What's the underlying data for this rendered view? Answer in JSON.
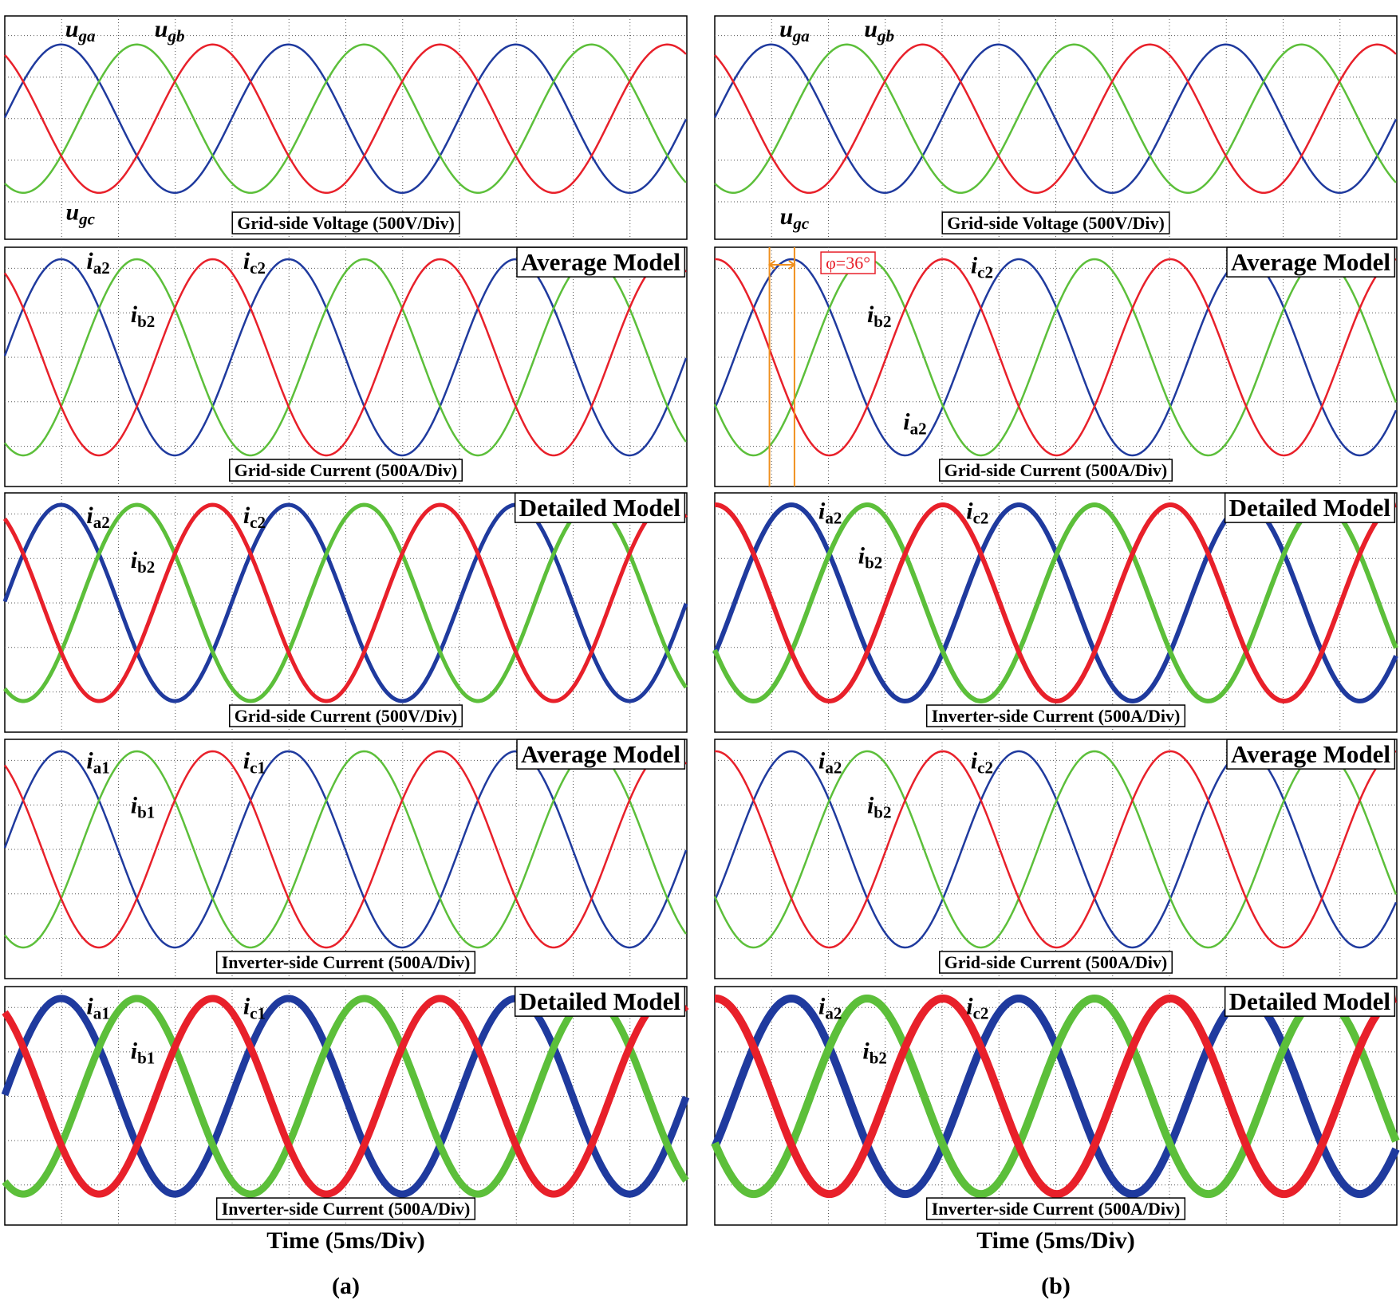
{
  "columns": [
    {
      "caption": "(a)",
      "x_axis_label": "Time (5ms/Div)",
      "panels": [
        {
          "scale_label": "Grid-side Voltage (500V/Div)",
          "signal_labels": [
            {
              "main": "u",
              "sub": "ga"
            },
            {
              "main": "u",
              "sub": "gb"
            },
            {
              "main": "u",
              "sub": "gc"
            }
          ]
        },
        {
          "model": "Average Model",
          "scale_label": "Grid-side Current (500A/Div)",
          "signal_labels": [
            {
              "main": "i",
              "sub": "a2"
            },
            {
              "main": "i",
              "sub": "b2"
            },
            {
              "main": "i",
              "sub": "c2"
            }
          ]
        },
        {
          "model": "Detailed Model",
          "scale_label": "Grid-side Current (500V/Div)",
          "signal_labels": [
            {
              "main": "i",
              "sub": "a2"
            },
            {
              "main": "i",
              "sub": "b2"
            },
            {
              "main": "i",
              "sub": "c2"
            }
          ]
        },
        {
          "model": "Average Model",
          "scale_label": "Inverter-side Current (500A/Div)",
          "signal_labels": [
            {
              "main": "i",
              "sub": "a1"
            },
            {
              "main": "i",
              "sub": "b1"
            },
            {
              "main": "i",
              "sub": "c1"
            }
          ]
        },
        {
          "model": "Detailed Model",
          "scale_label": "Inverter-side Current (500A/Div)",
          "signal_labels": [
            {
              "main": "i",
              "sub": "a1"
            },
            {
              "main": "i",
              "sub": "b1"
            },
            {
              "main": "i",
              "sub": "c1"
            }
          ]
        }
      ]
    },
    {
      "caption": "(b)",
      "x_axis_label": "Time (5ms/Div)",
      "panels": [
        {
          "scale_label": "Grid-side Voltage (500V/Div)",
          "signal_labels": [
            {
              "main": "u",
              "sub": "ga"
            },
            {
              "main": "u",
              "sub": "gb"
            },
            {
              "main": "u",
              "sub": "gc"
            }
          ]
        },
        {
          "model": "Average Model",
          "scale_label": "Grid-side Current (500A/Div)",
          "phase_annotation": "φ=36°",
          "signal_labels": [
            {
              "main": "i",
              "sub": "a2"
            },
            {
              "main": "i",
              "sub": "b2"
            },
            {
              "main": "i",
              "sub": "c2"
            }
          ]
        },
        {
          "model": "Detailed Model",
          "scale_label": "Inverter-side Current (500A/Div)",
          "signal_labels": [
            {
              "main": "i",
              "sub": "a2"
            },
            {
              "main": "i",
              "sub": "b2"
            },
            {
              "main": "i",
              "sub": "c2"
            }
          ]
        },
        {
          "model": "Average Model",
          "scale_label": "Grid-side Current (500A/Div)",
          "signal_labels": [
            {
              "main": "i",
              "sub": "a2"
            },
            {
              "main": "i",
              "sub": "b2"
            },
            {
              "main": "i",
              "sub": "c2"
            }
          ]
        },
        {
          "model": "Detailed Model",
          "scale_label": "Inverter-side Current (500A/Div)",
          "signal_labels": [
            {
              "main": "i",
              "sub": "a2"
            },
            {
              "main": "i",
              "sub": "b2"
            },
            {
              "main": "i",
              "sub": "c2"
            }
          ]
        }
      ]
    }
  ]
}
